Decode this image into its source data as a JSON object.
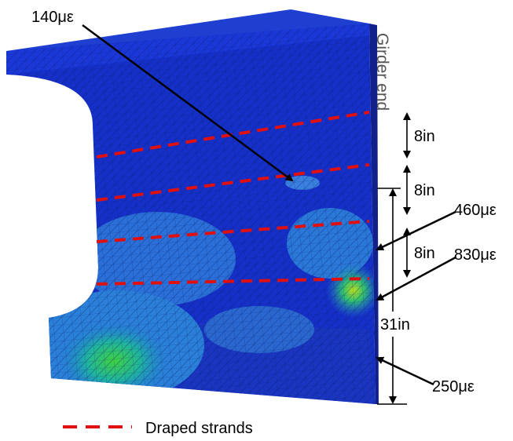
{
  "annotations": {
    "strain_top": "140με",
    "strain_mid": "460με",
    "strain_peak": "830με",
    "strain_bottom": "250με"
  },
  "girder_end": "Girder end",
  "dimensions": [
    "8in",
    "8in",
    "8in",
    "31in"
  ],
  "legend": {
    "label": "Draped strands"
  }
}
